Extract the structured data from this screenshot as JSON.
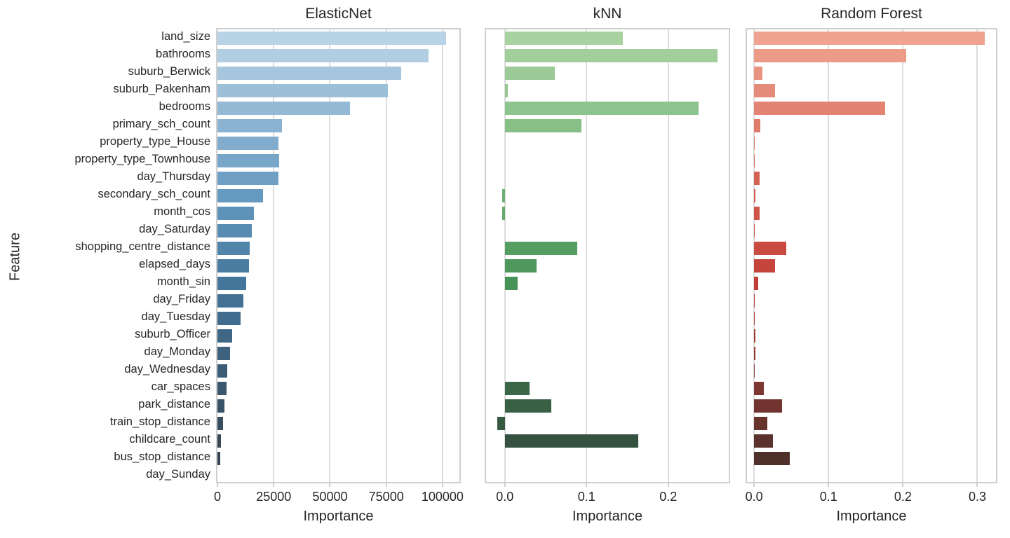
{
  "chart_data": {
    "type": "bar",
    "orientation": "horizontal",
    "grid": true,
    "legend": false,
    "ylabel": "Feature",
    "categories": [
      "land_size",
      "bathrooms",
      "suburb_Berwick",
      "suburb_Pakenham",
      "bedrooms",
      "primary_sch_count",
      "property_type_House",
      "property_type_Townhouse",
      "day_Thursday",
      "secondary_sch_count",
      "month_cos",
      "day_Saturday",
      "shopping_centre_distance",
      "elapsed_days",
      "month_sin",
      "day_Friday",
      "day_Tuesday",
      "suburb_Officer",
      "day_Monday",
      "day_Wednesday",
      "car_spaces",
      "park_distance",
      "train_stop_distance",
      "childcare_count",
      "bus_stop_distance",
      "day_Sunday"
    ],
    "series": [
      {
        "name": "ElasticNet",
        "xlabel": "Importance",
        "xlim": [
          0,
          107500
        ],
        "xticks": [
          0,
          25000,
          50000,
          75000,
          100000
        ],
        "xtick_labels": [
          "0",
          "25000",
          "50000",
          "75000",
          "100000"
        ],
        "palette": [
          [
            0,
            "#b9d3e6"
          ],
          [
            0.36,
            "#6699c0"
          ],
          [
            0.56,
            "#44769c"
          ],
          [
            1,
            "#333d47"
          ]
        ],
        "values": [
          101500,
          93800,
          81600,
          75800,
          59000,
          28800,
          27200,
          27300,
          27000,
          20100,
          16200,
          15200,
          14400,
          14100,
          12700,
          11400,
          10400,
          6500,
          5600,
          4500,
          4100,
          3250,
          2550,
          1700,
          1300,
          0
        ]
      },
      {
        "name": "kNN",
        "xlabel": "Importance",
        "xlim": [
          -0.023,
          0.274
        ],
        "xticks": [
          0,
          0.1,
          0.2
        ],
        "xtick_labels": [
          "0.0",
          "0.1",
          "0.2"
        ],
        "palette": [
          [
            0,
            "#a9d2a1"
          ],
          [
            0.36,
            "#6bb073"
          ],
          [
            0.56,
            "#479257"
          ],
          [
            1,
            "#30443a"
          ]
        ],
        "values": [
          0.1445,
          0.2605,
          0.0615,
          0.004,
          0.2375,
          0.094,
          0,
          0,
          0,
          -0.003,
          -0.003,
          0,
          0.0885,
          0.0385,
          0.016,
          0,
          0,
          0,
          0,
          0,
          0.03,
          0.057,
          -0.009,
          0.1635,
          0,
          0
        ]
      },
      {
        "name": "Random Forest",
        "xlabel": "Importance",
        "xlim": [
          -0.0095,
          0.325
        ],
        "xticks": [
          0,
          0.1,
          0.2,
          0.3
        ],
        "xtick_labels": [
          "0.0",
          "0.1",
          "0.2",
          "0.3"
        ],
        "palette": [
          [
            0,
            "#efa390"
          ],
          [
            0.36,
            "#d25b4e"
          ],
          [
            0.56,
            "#c23f39"
          ],
          [
            1,
            "#432e29"
          ]
        ],
        "values": [
          0.31,
          0.204,
          0.0115,
          0.0285,
          0.176,
          0.008,
          0.0008,
          0.0003,
          0.0072,
          0.002,
          0.0075,
          0.0005,
          0.0428,
          0.0285,
          0.0056,
          0.0003,
          0.001,
          0.0015,
          0.0015,
          0.0003,
          0.013,
          0.038,
          0.0178,
          0.0256,
          0.048,
          0
        ]
      }
    ],
    "style": {
      "background": "#ffffff",
      "text_color": "#262626",
      "grid_color": "#dcdcdc",
      "frame_color": "#cfcfcf"
    }
  }
}
